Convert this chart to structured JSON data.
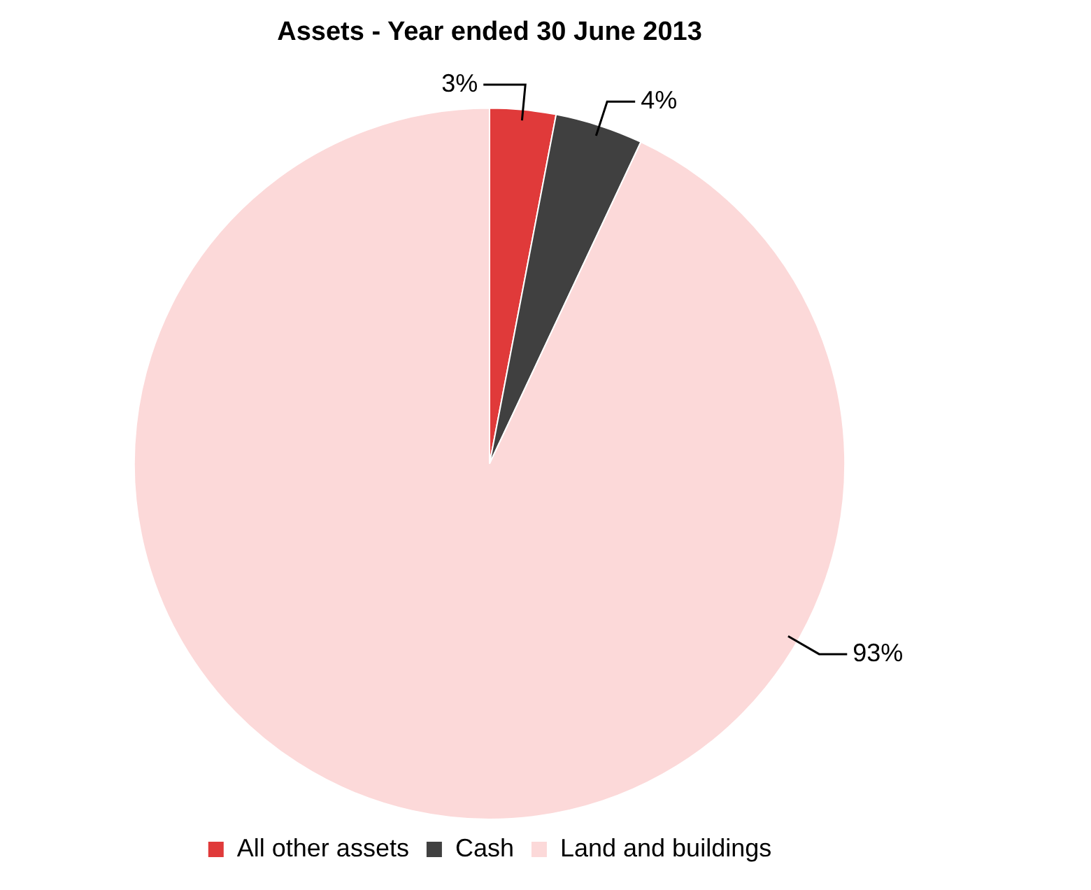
{
  "chart_data": {
    "type": "pie",
    "title": "Assets - Year ended 30 June 2013",
    "categories": [
      "All other assets",
      "Cash",
      "Land and buildings"
    ],
    "values": [
      3,
      4,
      93
    ],
    "colors": [
      "#e03a3a",
      "#404040",
      "#fcd9d9"
    ],
    "value_labels": [
      "3%",
      "4%",
      "93%"
    ],
    "legend": "bottom"
  }
}
